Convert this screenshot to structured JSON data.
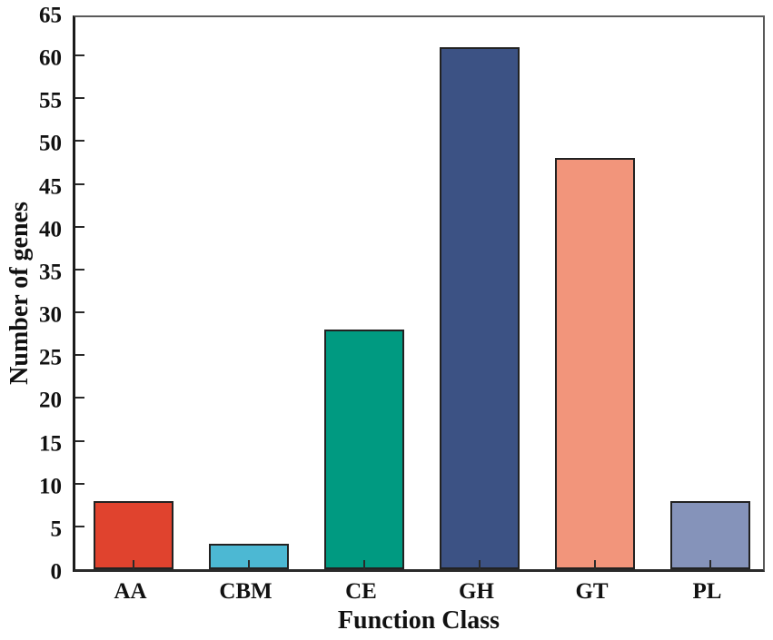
{
  "chart_data": {
    "type": "bar",
    "categories": [
      "AA",
      "CBM",
      "CE",
      "GH",
      "GT",
      "PL"
    ],
    "values": [
      8,
      3,
      28,
      61,
      48,
      8
    ],
    "bar_colors": [
      "#E0432E",
      "#4CB8D3",
      "#009A81",
      "#3C5284",
      "#F2957B",
      "#8593BA"
    ],
    "bar_border_color": "#222222",
    "title": "",
    "xlabel": "Function Class",
    "ylabel": "Number of genes",
    "ylim": [
      0,
      65
    ],
    "ytick_step": 5,
    "yticks": [
      0,
      5,
      10,
      15,
      20,
      25,
      30,
      35,
      40,
      45,
      50,
      55,
      60,
      65
    ],
    "grid": false,
    "legend": "none"
  }
}
